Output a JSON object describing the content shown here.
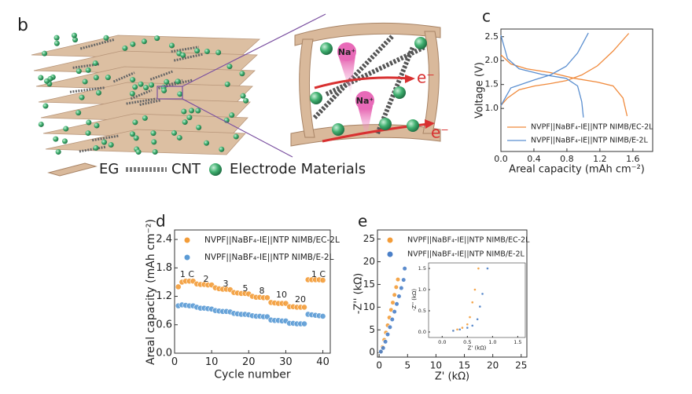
{
  "schematic": {
    "label": "b",
    "ions": [
      "Na⁺",
      "Na⁺"
    ],
    "electrons": [
      "e⁻",
      "e⁻"
    ],
    "legend": [
      "EG",
      "CNT",
      "Electrode Materials"
    ]
  },
  "chart_data": [
    {
      "type": "line",
      "label": "c",
      "xlabel": "Areal capacity (mAh cm⁻²)",
      "ylabel": "Voltage (V)",
      "xlim": [
        0,
        1.84
      ],
      "ylim": [
        0.1,
        2.66
      ],
      "xticks": [
        {
          "value": 0,
          "label": "0.0"
        },
        {
          "value": 0.4,
          "label": "0.4"
        },
        {
          "value": 0.8,
          "label": "0.8"
        },
        {
          "value": 1.2,
          "label": "1.2"
        },
        {
          "value": 1.6,
          "label": "1.6"
        }
      ],
      "yticks": [
        {
          "value": 1,
          "label": "1.0"
        },
        {
          "value": 1.5,
          "label": "1.5"
        },
        {
          "value": 2,
          "label": "2.0"
        },
        {
          "value": 2.5,
          "label": "2.5"
        }
      ],
      "legend": "lower left",
      "series": [
        {
          "name": "NVPF||NaBF₄-IE||NTP NIMB/EC-2L",
          "color": "#f08a3c",
          "x": [
            0,
            0.08,
            0.22,
            0.41,
            0.6,
            0.79,
            0.98,
            1.17,
            1.36,
            1.55,
            null,
            0,
            0.12,
            0.31,
            0.6,
            0.89,
            1.17,
            1.36,
            1.48,
            1.53
          ],
          "values": [
            1.06,
            1.22,
            1.39,
            1.47,
            1.52,
            1.58,
            1.7,
            1.89,
            2.2,
            2.57,
            null,
            2.12,
            1.93,
            1.83,
            1.75,
            1.63,
            1.55,
            1.47,
            1.22,
            0.84
          ]
        },
        {
          "name": "NVPF||NaBF₄-IE||NTP NIMB/E-2L",
          "color": "#5b8fd0",
          "x": [
            0,
            0.12,
            0.41,
            0.6,
            0.79,
            0.93,
            1.06,
            null,
            0,
            0.08,
            0.22,
            0.5,
            0.79,
            0.93,
            0.98,
            1.0
          ],
          "values": [
            1.06,
            1.43,
            1.6,
            1.7,
            1.88,
            2.16,
            2.58,
            null,
            2.53,
            2.04,
            1.83,
            1.71,
            1.63,
            1.47,
            1.14,
            0.81
          ]
        }
      ]
    },
    {
      "type": "scatter",
      "label": "d",
      "xlabel": "Cycle number",
      "ylabel": "Areal capacity (mAh cm⁻²)",
      "xlim": [
        0,
        42
      ],
      "ylim": [
        0,
        2.6
      ],
      "xticks": [
        0,
        10,
        20,
        30,
        40
      ],
      "yticks": [
        {
          "value": 0,
          "label": "0.0"
        },
        {
          "value": 0.6,
          "label": "0.6"
        },
        {
          "value": 1.2,
          "label": "1.2"
        },
        {
          "value": 1.8,
          "label": "1.8"
        },
        {
          "value": 2.4,
          "label": "2.4"
        }
      ],
      "legend": "upper left",
      "annotations": [
        "1 C",
        "2",
        "3",
        "5",
        "8",
        "10",
        "20",
        "1 C"
      ],
      "series": [
        {
          "name": "NVPF||NaBF₄-IE||NTP NIMB/EC-2L",
          "color": "#f39c38",
          "x": [
            1,
            2,
            3,
            4,
            5,
            6,
            7,
            8,
            9,
            10,
            11,
            12,
            13,
            14,
            15,
            16,
            17,
            18,
            19,
            20,
            21,
            22,
            23,
            24,
            25,
            26,
            27,
            28,
            29,
            30,
            31,
            32,
            33,
            34,
            35,
            36,
            37,
            38,
            39,
            40
          ],
          "values": [
            1.4,
            1.5,
            1.52,
            1.52,
            1.52,
            1.46,
            1.45,
            1.45,
            1.44,
            1.44,
            1.38,
            1.36,
            1.35,
            1.35,
            1.34,
            1.28,
            1.27,
            1.26,
            1.26,
            1.25,
            1.2,
            1.18,
            1.18,
            1.17,
            1.17,
            1.07,
            1.06,
            1.05,
            1.05,
            1.05,
            0.98,
            0.98,
            0.97,
            0.97,
            0.97,
            1.55,
            1.55,
            1.55,
            1.55,
            1.54
          ]
        },
        {
          "name": "NVPF||NaBF₄-IE||NTP NIMB/E-2L",
          "color": "#5b9bd5",
          "x": [
            1,
            2,
            3,
            4,
            5,
            6,
            7,
            8,
            9,
            10,
            11,
            12,
            13,
            14,
            15,
            16,
            17,
            18,
            19,
            20,
            21,
            22,
            23,
            24,
            25,
            26,
            27,
            28,
            29,
            30,
            31,
            32,
            33,
            34,
            35,
            36,
            37,
            38,
            39,
            40
          ],
          "values": [
            1.0,
            1.02,
            1.01,
            1.0,
            1.0,
            0.97,
            0.95,
            0.95,
            0.94,
            0.93,
            0.9,
            0.89,
            0.88,
            0.88,
            0.87,
            0.84,
            0.83,
            0.82,
            0.82,
            0.81,
            0.79,
            0.78,
            0.78,
            0.77,
            0.77,
            0.7,
            0.69,
            0.69,
            0.68,
            0.68,
            0.63,
            0.63,
            0.62,
            0.62,
            0.62,
            0.82,
            0.81,
            0.8,
            0.79,
            0.78
          ]
        }
      ]
    },
    {
      "type": "scatter",
      "label": "e",
      "xlabel": "Z' (kΩ)",
      "ylabel": "-Z'' (kΩ)",
      "xlim": [
        -0.3,
        26
      ],
      "ylim": [
        -1,
        27
      ],
      "xticks": [
        0,
        5,
        10,
        15,
        20,
        25
      ],
      "yticks": [
        0,
        5,
        10,
        15,
        20,
        25
      ],
      "legend": "upper left",
      "series": [
        {
          "name": "NVPF||NaBF₄-IE||NTP NIMB/EC-2L",
          "color": "#f39c38",
          "x": [
            0.3,
            0.6,
            0.9,
            1.2,
            1.5,
            1.8,
            2.1,
            2.4,
            2.7,
            3.0,
            3.3
          ],
          "values": [
            0.2,
            1.2,
            2.8,
            4.4,
            6.0,
            7.7,
            9.4,
            11.0,
            12.7,
            14.4,
            16.1
          ]
        },
        {
          "name": "NVPF||NaBF₄-IE||NTP NIMB/E-2L",
          "color": "#4a7fc8",
          "x": [
            0.3,
            0.7,
            1.1,
            1.5,
            1.9,
            2.3,
            2.7,
            3.1,
            3.5,
            3.9,
            4.3,
            4.5
          ],
          "values": [
            0.2,
            1.0,
            2.4,
            4.0,
            5.6,
            7.3,
            9.0,
            10.7,
            12.4,
            14.2,
            16.0,
            18.5
          ]
        }
      ]
    },
    {
      "type": "scatter",
      "xlabel": "Z' (kΩ)",
      "ylabel": "-Z'' (kΩ)",
      "xlim": [
        -0.27,
        1.65
      ],
      "ylim": [
        -0.13,
        1.63
      ],
      "xticks": [
        {
          "value": 0,
          "label": "0.0"
        },
        {
          "value": 0.5,
          "label": "0.5"
        },
        {
          "value": 1,
          "label": "1.0"
        },
        {
          "value": 1.5,
          "label": "1.5"
        }
      ],
      "yticks": [
        {
          "value": 0,
          "label": "0.0"
        },
        {
          "value": 0.5,
          "label": "0.5"
        },
        {
          "value": 1,
          "label": "1.0"
        },
        {
          "value": 1.5,
          "label": "1.5"
        }
      ],
      "series": [
        {
          "color": "#f39c38",
          "x": [
            0.22,
            0.3,
            0.4,
            0.5,
            0.55,
            0.6,
            0.65,
            0.72
          ],
          "values": [
            0.03,
            0.06,
            0.1,
            0.18,
            0.35,
            0.7,
            1.0,
            1.5
          ]
        },
        {
          "color": "#4a7fc8",
          "x": [
            0.22,
            0.35,
            0.5,
            0.6,
            0.7,
            0.75,
            0.8,
            0.9
          ],
          "values": [
            0.03,
            0.06,
            0.1,
            0.15,
            0.3,
            0.6,
            0.9,
            1.5
          ]
        }
      ]
    }
  ]
}
